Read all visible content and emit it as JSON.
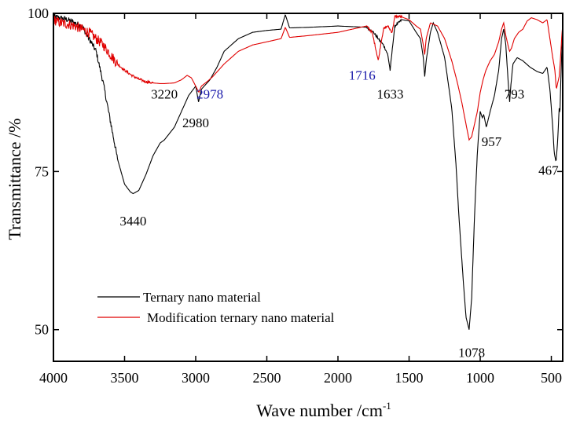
{
  "chart_data": {
    "type": "line",
    "xlabel": "Wave number /cm",
    "xlabel_superscript": "-1",
    "ylabel": "Transmittance /%",
    "xlim": [
      4000,
      420
    ],
    "ylim": [
      45,
      100
    ],
    "x_reversed": true,
    "x_ticks": [
      4000,
      3500,
      3000,
      2500,
      2000,
      1500,
      1000,
      500
    ],
    "y_ticks": [
      50,
      75,
      100
    ],
    "grid": false,
    "legend_position": "bottom-left",
    "series": [
      {
        "name": "Ternary nano material",
        "color": "#000000",
        "points": [
          [
            4000,
            99.5
          ],
          [
            3900,
            99.0
          ],
          [
            3800,
            98.0
          ],
          [
            3700,
            94.0
          ],
          [
            3650,
            89.0
          ],
          [
            3600,
            83.0
          ],
          [
            3550,
            77.0
          ],
          [
            3500,
            73.0
          ],
          [
            3460,
            71.8
          ],
          [
            3440,
            71.5
          ],
          [
            3400,
            72.0
          ],
          [
            3350,
            74.5
          ],
          [
            3300,
            77.5
          ],
          [
            3250,
            79.5
          ],
          [
            3220,
            80.0
          ],
          [
            3150,
            82.0
          ],
          [
            3100,
            84.5
          ],
          [
            3050,
            87.0
          ],
          [
            3000,
            88.5
          ],
          [
            2980,
            86.0
          ],
          [
            2960,
            88.0
          ],
          [
            2900,
            89.5
          ],
          [
            2850,
            91.5
          ],
          [
            2800,
            94.0
          ],
          [
            2700,
            96.0
          ],
          [
            2600,
            97.0
          ],
          [
            2500,
            97.3
          ],
          [
            2400,
            97.5
          ],
          [
            2370,
            99.8
          ],
          [
            2340,
            97.7
          ],
          [
            2200,
            97.8
          ],
          [
            2000,
            98.0
          ],
          [
            1900,
            97.9
          ],
          [
            1800,
            97.8
          ],
          [
            1750,
            97.0
          ],
          [
            1700,
            95.5
          ],
          [
            1680,
            95.0
          ],
          [
            1650,
            93.5
          ],
          [
            1633,
            91.0
          ],
          [
            1615,
            95.0
          ],
          [
            1600,
            98.0
          ],
          [
            1550,
            99.0
          ],
          [
            1500,
            98.8
          ],
          [
            1450,
            97.0
          ],
          [
            1420,
            96.0
          ],
          [
            1400,
            93.0
          ],
          [
            1390,
            90.0
          ],
          [
            1380,
            92.5
          ],
          [
            1350,
            97.0
          ],
          [
            1330,
            98.5
          ],
          [
            1300,
            97.0
          ],
          [
            1250,
            93.0
          ],
          [
            1200,
            85.0
          ],
          [
            1170,
            76.0
          ],
          [
            1150,
            68.0
          ],
          [
            1120,
            58.0
          ],
          [
            1100,
            52.0
          ],
          [
            1078,
            50.0
          ],
          [
            1060,
            55.0
          ],
          [
            1040,
            68.0
          ],
          [
            1020,
            78.0
          ],
          [
            1000,
            84.5
          ],
          [
            985,
            83.5
          ],
          [
            975,
            84.0
          ],
          [
            957,
            82.0
          ],
          [
            930,
            84.5
          ],
          [
            900,
            87.0
          ],
          [
            870,
            91.0
          ],
          [
            850,
            96.0
          ],
          [
            835,
            97.5
          ],
          [
            820,
            95.0
          ],
          [
            800,
            88.0
          ],
          [
            793,
            86.0
          ],
          [
            785,
            88.5
          ],
          [
            770,
            92.0
          ],
          [
            740,
            93.0
          ],
          [
            700,
            92.5
          ],
          [
            650,
            91.5
          ],
          [
            600,
            90.8
          ],
          [
            560,
            90.5
          ],
          [
            530,
            91.5
          ],
          [
            510,
            88.0
          ],
          [
            490,
            82.0
          ],
          [
            480,
            78.0
          ],
          [
            467,
            76.5
          ],
          [
            455,
            80.0
          ],
          [
            445,
            85.0
          ],
          [
            440,
            84.0
          ],
          [
            435,
            88.0
          ],
          [
            425,
            95.0
          ],
          [
            420,
            97.0
          ]
        ]
      },
      {
        "name": "Modification ternary nano material",
        "color": "#e00000",
        "points": [
          [
            4000,
            99.0
          ],
          [
            3950,
            98.5
          ],
          [
            3900,
            98.3
          ],
          [
            3850,
            98.0
          ],
          [
            3800,
            97.5
          ],
          [
            3750,
            97.0
          ],
          [
            3700,
            96.0
          ],
          [
            3650,
            95.0
          ],
          [
            3600,
            93.5
          ],
          [
            3550,
            92.0
          ],
          [
            3500,
            91.0
          ],
          [
            3450,
            90.2
          ],
          [
            3400,
            89.6
          ],
          [
            3350,
            89.2
          ],
          [
            3300,
            89.0
          ],
          [
            3250,
            88.9
          ],
          [
            3220,
            88.9
          ],
          [
            3150,
            89.0
          ],
          [
            3100,
            89.5
          ],
          [
            3060,
            90.2
          ],
          [
            3030,
            89.8
          ],
          [
            3000,
            88.5
          ],
          [
            2978,
            87.5
          ],
          [
            2960,
            88.5
          ],
          [
            2920,
            89.2
          ],
          [
            2880,
            90.0
          ],
          [
            2800,
            92.0
          ],
          [
            2700,
            94.0
          ],
          [
            2600,
            95.0
          ],
          [
            2500,
            95.5
          ],
          [
            2400,
            96.0
          ],
          [
            2370,
            97.8
          ],
          [
            2340,
            96.2
          ],
          [
            2200,
            96.5
          ],
          [
            2000,
            97.0
          ],
          [
            1900,
            97.5
          ],
          [
            1800,
            98.0
          ],
          [
            1760,
            97.0
          ],
          [
            1740,
            95.0
          ],
          [
            1716,
            92.5
          ],
          [
            1700,
            95.0
          ],
          [
            1680,
            97.5
          ],
          [
            1650,
            98.0
          ],
          [
            1620,
            97.0
          ],
          [
            1600,
            99.5
          ],
          [
            1560,
            99.5
          ],
          [
            1500,
            99.0
          ],
          [
            1450,
            98.0
          ],
          [
            1420,
            97.5
          ],
          [
            1400,
            95.0
          ],
          [
            1390,
            93.5
          ],
          [
            1380,
            96.0
          ],
          [
            1350,
            98.5
          ],
          [
            1300,
            98.0
          ],
          [
            1250,
            96.0
          ],
          [
            1200,
            92.5
          ],
          [
            1160,
            89.0
          ],
          [
            1130,
            86.0
          ],
          [
            1100,
            82.5
          ],
          [
            1078,
            80.0
          ],
          [
            1060,
            80.5
          ],
          [
            1040,
            82.5
          ],
          [
            1020,
            84.5
          ],
          [
            1000,
            87.5
          ],
          [
            980,
            89.5
          ],
          [
            960,
            91.0
          ],
          [
            930,
            92.5
          ],
          [
            900,
            93.5
          ],
          [
            870,
            95.5
          ],
          [
            850,
            97.5
          ],
          [
            835,
            98.5
          ],
          [
            820,
            96.5
          ],
          [
            800,
            94.5
          ],
          [
            793,
            94.0
          ],
          [
            780,
            94.5
          ],
          [
            760,
            96.0
          ],
          [
            730,
            97.0
          ],
          [
            700,
            97.5
          ],
          [
            670,
            98.8
          ],
          [
            640,
            99.3
          ],
          [
            600,
            99.0
          ],
          [
            560,
            98.5
          ],
          [
            530,
            99.0
          ],
          [
            510,
            96.0
          ],
          [
            490,
            93.0
          ],
          [
            475,
            91.0
          ],
          [
            465,
            88.0
          ],
          [
            455,
            89.0
          ],
          [
            445,
            90.0
          ],
          [
            435,
            93.0
          ],
          [
            425,
            97.0
          ],
          [
            420,
            98.0
          ]
        ]
      }
    ],
    "annotations": [
      {
        "text": "3440",
        "x": 3440,
        "y": 66.5,
        "color": "#000000"
      },
      {
        "text": "3220",
        "x": 3220,
        "y": 86.5,
        "color": "#000000"
      },
      {
        "text": "2978",
        "x": 2900,
        "y": 86.5,
        "color": "#1a1aaa"
      },
      {
        "text": "2980",
        "x": 3000,
        "y": 82.0,
        "color": "#000000"
      },
      {
        "text": "1716",
        "x": 1830,
        "y": 89.5,
        "color": "#1a1aaa"
      },
      {
        "text": "1633",
        "x": 1633,
        "y": 86.5,
        "color": "#000000"
      },
      {
        "text": "1078",
        "x": 1060,
        "y": 45.7,
        "color": "#000000"
      },
      {
        "text": "957",
        "x": 920,
        "y": 79.0,
        "color": "#000000"
      },
      {
        "text": "793",
        "x": 760,
        "y": 86.5,
        "color": "#000000"
      },
      {
        "text": "467",
        "x": 520,
        "y": 74.5,
        "color": "#000000"
      }
    ]
  }
}
